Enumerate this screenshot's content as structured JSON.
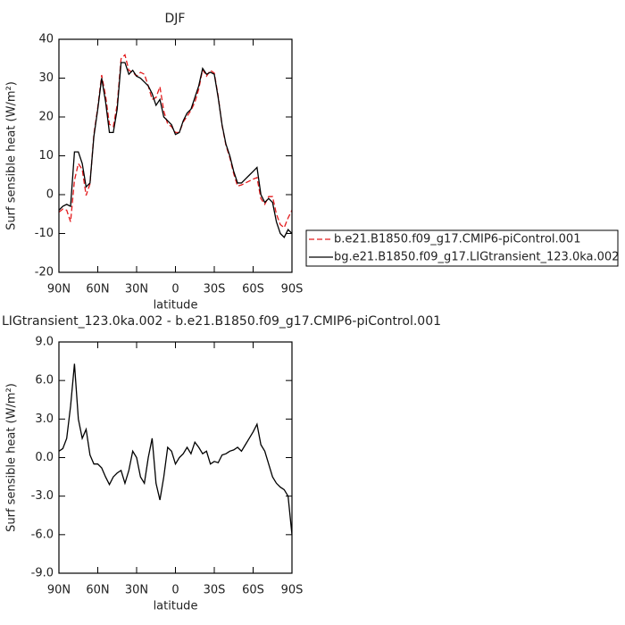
{
  "chart_data": [
    {
      "type": "line",
      "title": "DJF",
      "xlabel": "latitude",
      "ylabel": "Surf sensible heat (W/m²)",
      "x": [
        90,
        87,
        84,
        81,
        78,
        75,
        72,
        69,
        66,
        63,
        60,
        57,
        54,
        51,
        48,
        45,
        42,
        39,
        36,
        33,
        30,
        27,
        24,
        21,
        18,
        15,
        12,
        9,
        6,
        3,
        0,
        -3,
        -6,
        -9,
        -12,
        -15,
        -18,
        -21,
        -24,
        -27,
        -30,
        -33,
        -36,
        -39,
        -42,
        -45,
        -48,
        -51,
        -54,
        -57,
        -60,
        -63,
        -66,
        -69,
        -72,
        -75,
        -78,
        -81,
        -84,
        -87,
        -90
      ],
      "series": [
        {
          "name": "b.e21.B1850.f09_g17.CMIP6-piControl.001",
          "color": "#e31a1c",
          "linestyle": "dashed",
          "values": [
            -4.5,
            -3.7,
            -4,
            -7,
            3.7,
            8,
            6.5,
            -0.2,
            2.8,
            15.5,
            22.5,
            30.8,
            25.5,
            18.1,
            17.5,
            23.2,
            35,
            36,
            32,
            31.5,
            30.5,
            31.5,
            31,
            28,
            24.5,
            25,
            27.8,
            21.5,
            18.2,
            17.5,
            16,
            16,
            18.7,
            20.2,
            21.7,
            23.8,
            27.2,
            32.2,
            30.5,
            32,
            31.3,
            25.4,
            17.8,
            12.7,
            9.5,
            5.4,
            2.2,
            2.5,
            3,
            3.5,
            4,
            4.4,
            -1,
            -2.5,
            -0.5,
            -0.5,
            -5,
            -7.7,
            -8.5,
            -6,
            -4
          ]
        },
        {
          "name": "bg.e21.B1850.f09_g17.LIGtransient_123.0ka.002",
          "color": "#000000",
          "linestyle": "solid",
          "values": [
            -4,
            -3,
            -2.5,
            -3,
            11,
            11,
            8,
            2,
            3,
            15,
            22,
            30,
            24,
            16,
            16,
            22,
            34,
            34,
            31,
            32,
            30.5,
            30,
            29,
            28,
            26,
            23,
            24.5,
            20,
            19,
            18,
            15.5,
            16,
            19,
            21,
            22,
            25,
            28,
            32.5,
            31,
            31.5,
            31,
            25,
            18,
            13,
            10,
            6,
            3,
            3,
            4,
            5,
            6,
            7,
            0,
            -2,
            -1,
            -2,
            -7,
            -10,
            -11,
            -9,
            -10
          ]
        }
      ],
      "xlim": [
        90,
        -90
      ],
      "xticks": [
        {
          "value": 90,
          "label": "90N"
        },
        {
          "value": 60,
          "label": "60N"
        },
        {
          "value": 30,
          "label": "30N"
        },
        0,
        {
          "value": -30,
          "label": "30S"
        },
        {
          "value": -60,
          "label": "60S"
        },
        {
          "value": -90,
          "label": "90S"
        }
      ],
      "ylim": [
        -20,
        40
      ],
      "yticks": [
        -20,
        -10,
        0,
        10,
        20,
        30,
        40
      ],
      "legend": "right"
    },
    {
      "type": "line",
      "title": "LIGtransient_123.0ka.002 - b.e21.B1850.f09_g17.CMIP6-piControl.001",
      "xlabel": "latitude",
      "ylabel": "Surf sensible heat (W/m²)",
      "x": [
        90,
        87,
        84,
        81,
        78,
        75,
        72,
        69,
        66,
        63,
        60,
        57,
        54,
        51,
        48,
        45,
        42,
        39,
        36,
        33,
        30,
        27,
        24,
        21,
        18,
        15,
        12,
        9,
        6,
        3,
        0,
        -3,
        -6,
        -9,
        -12,
        -15,
        -18,
        -21,
        -24,
        -27,
        -30,
        -33,
        -36,
        -39,
        -42,
        -45,
        -48,
        -51,
        -54,
        -57,
        -60,
        -63,
        -66,
        -69,
        -72,
        -75,
        -78,
        -81,
        -84,
        -87,
        -90
      ],
      "series": [
        {
          "color": "#000000",
          "linestyle": "solid",
          "values": [
            0.5,
            0.7,
            1.5,
            4,
            7.3,
            3,
            1.5,
            2.2,
            0.2,
            -0.5,
            -0.5,
            -0.8,
            -1.5,
            -2.1,
            -1.5,
            -1.2,
            -1,
            -2,
            -1,
            0.5,
            0,
            -1.5,
            -2,
            0,
            1.5,
            -2,
            -3.3,
            -1.5,
            0.8,
            0.5,
            -0.5,
            0,
            0.3,
            0.8,
            0.3,
            1.2,
            0.8,
            0.3,
            0.5,
            -0.5,
            -0.3,
            -0.4,
            0.2,
            0.3,
            0.5,
            0.6,
            0.8,
            0.5,
            1,
            1.5,
            2,
            2.6,
            1,
            0.5,
            -0.5,
            -1.5,
            -2,
            -2.3,
            -2.5,
            -3,
            -6
          ]
        }
      ],
      "xlim": [
        90,
        -90
      ],
      "xticks": [
        {
          "value": 90,
          "label": "90N"
        },
        {
          "value": 60,
          "label": "60N"
        },
        {
          "value": 30,
          "label": "30N"
        },
        0,
        {
          "value": -30,
          "label": "30S"
        },
        {
          "value": -60,
          "label": "60S"
        },
        {
          "value": -90,
          "label": "90S"
        }
      ],
      "ylim": [
        -9,
        9
      ],
      "yticks": [
        {
          "value": -9,
          "label": "-9.0"
        },
        {
          "value": -6,
          "label": "-6.0"
        },
        {
          "value": -3,
          "label": "-3.0"
        },
        {
          "value": 0,
          "label": "0.0"
        },
        {
          "value": 3,
          "label": "3.0"
        },
        {
          "value": 6,
          "label": "6.0"
        },
        {
          "value": 9,
          "label": "9.0"
        }
      ]
    }
  ]
}
